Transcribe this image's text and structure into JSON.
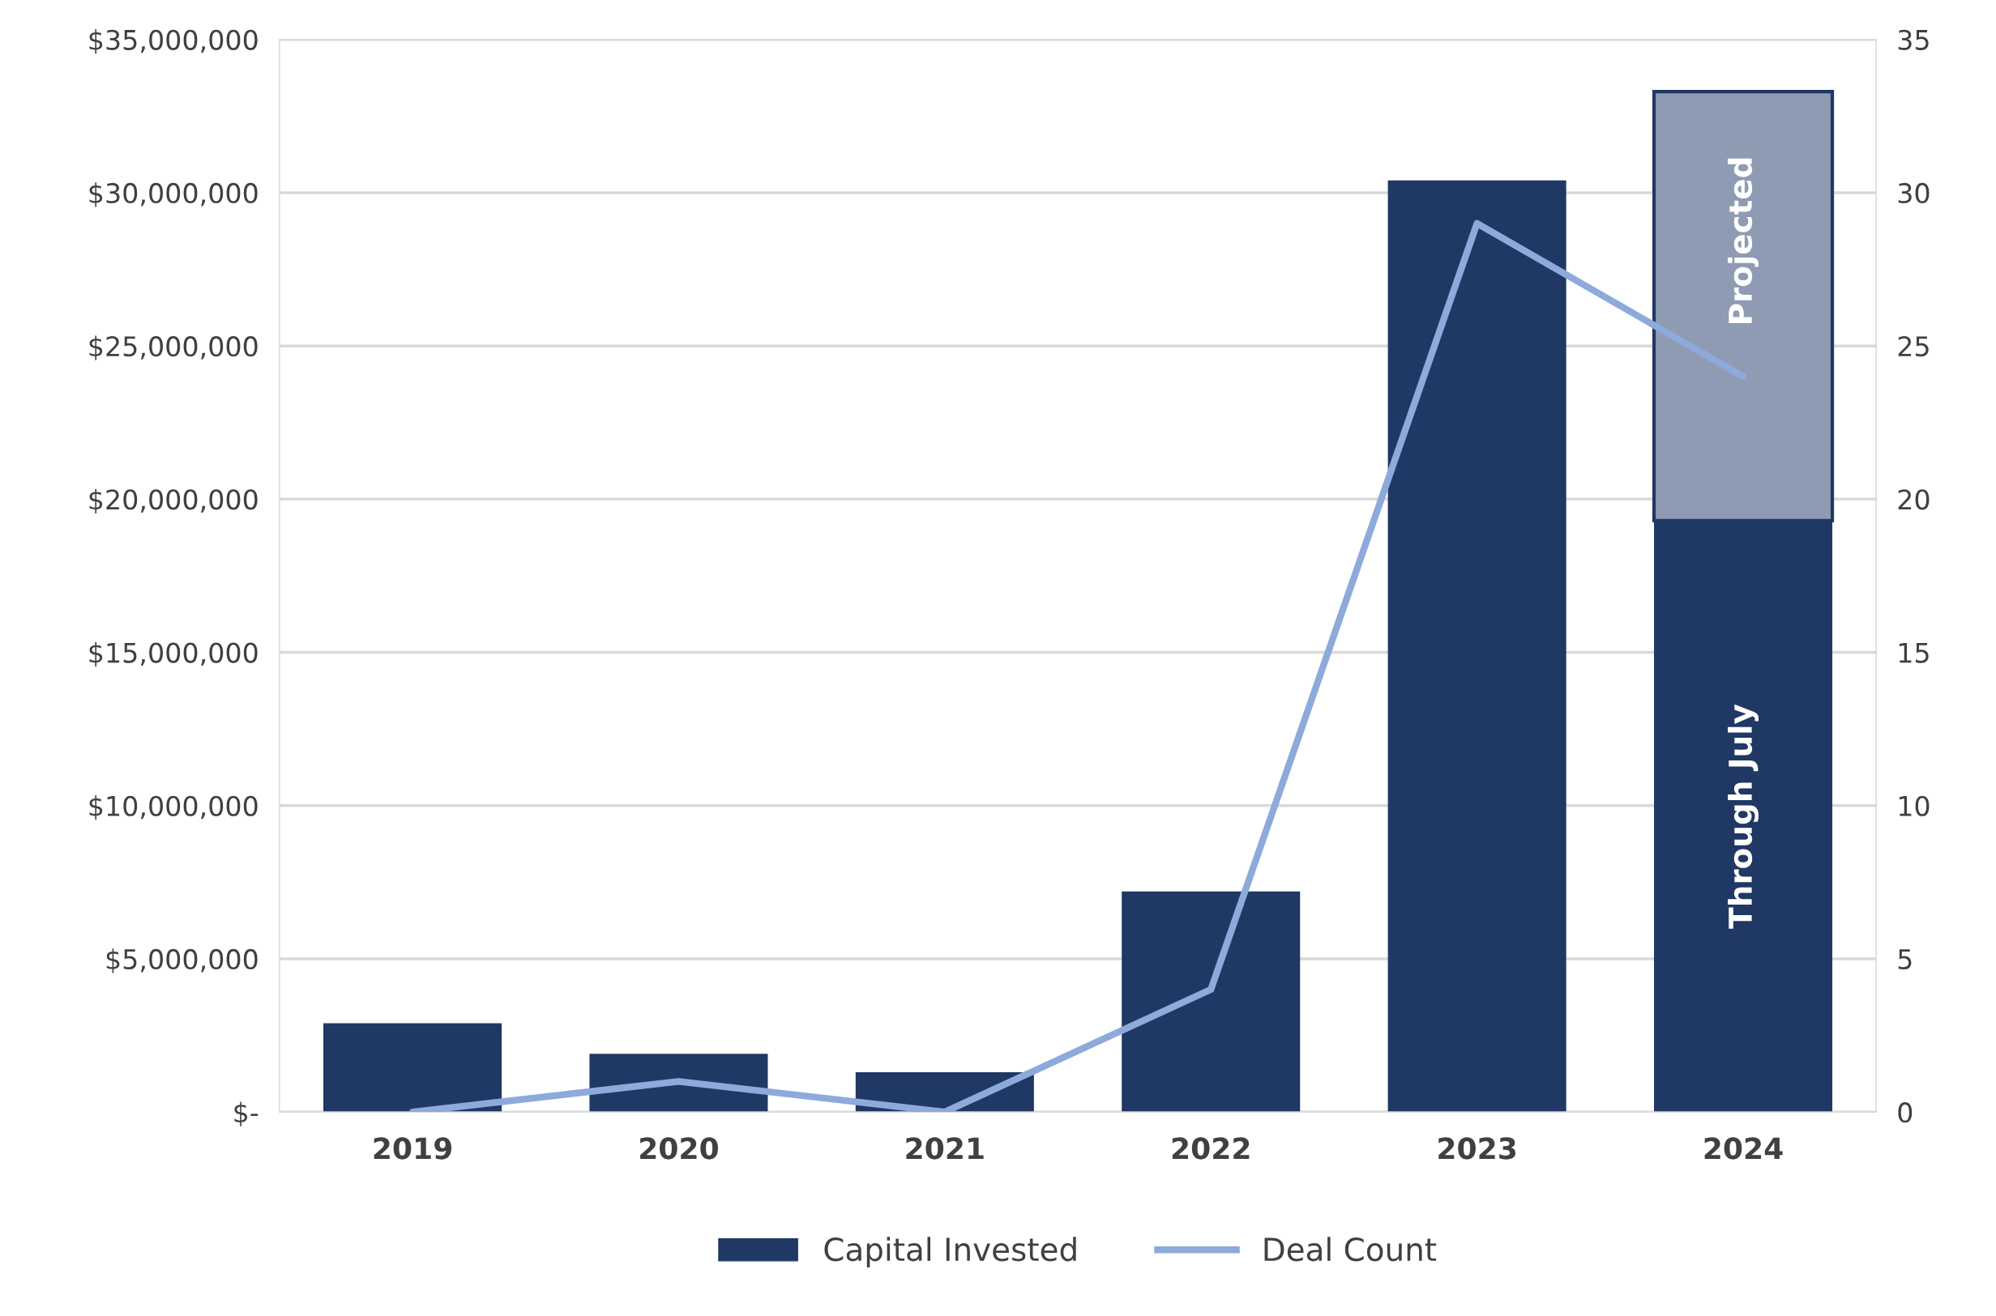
{
  "chart_data": {
    "type": "bar",
    "stacked": true,
    "categories": [
      "2019",
      "2020",
      "2021",
      "2022",
      "2023",
      "2024"
    ],
    "series": [
      {
        "name": "Capital Invested",
        "color": "#1f3864",
        "values": [
          2900000,
          1900000,
          1300000,
          7200000,
          30400000,
          19300000
        ]
      },
      {
        "color": "#8e9bb3",
        "values": [
          null,
          null,
          null,
          null,
          null,
          14000000
        ]
      },
      {
        "name": "Deal Count",
        "type": "line",
        "axis": "y2",
        "color": "#8eaadb",
        "values": [
          0,
          1,
          0,
          4,
          29,
          24
        ]
      }
    ],
    "ylim": [
      0,
      35000000
    ],
    "yticks": [
      {
        "value": 0,
        "label": "$-"
      },
      {
        "value": 5000000,
        "label": "$5,000,000"
      },
      {
        "value": 10000000,
        "label": "$10,000,000"
      },
      {
        "value": 15000000,
        "label": "$15,000,000"
      },
      {
        "value": 20000000,
        "label": "$20,000,000"
      },
      {
        "value": 25000000,
        "label": "$25,000,000"
      },
      {
        "value": 30000000,
        "label": "$30,000,000"
      },
      {
        "value": 35000000,
        "label": "$35,000,000"
      }
    ],
    "y2lim": [
      0,
      35
    ],
    "y2ticks": [
      0,
      5,
      10,
      15,
      20,
      25,
      30,
      35
    ],
    "annotations": [
      "Through July",
      "Projected"
    ],
    "grid": "y",
    "legend": "bottom"
  }
}
